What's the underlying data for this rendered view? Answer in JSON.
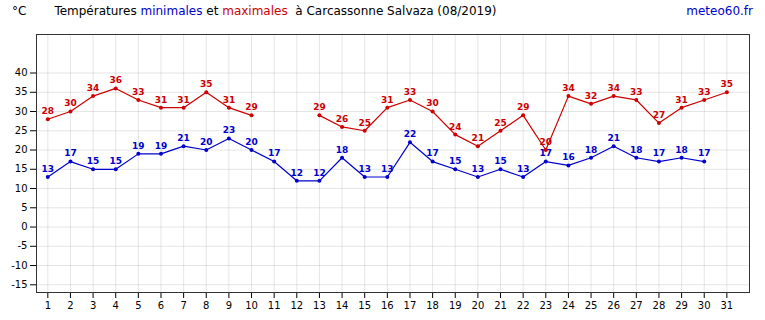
{
  "chart_data": {
    "type": "line",
    "title": "Températures minimales et maximales  à Carcassonne Salvaza (08/2019)",
    "ylabel": "°C",
    "annotations": [
      {
        "text": "meteo60.fr",
        "color": "#0000cc"
      }
    ],
    "x": [
      1,
      2,
      3,
      4,
      5,
      6,
      7,
      8,
      9,
      10,
      11,
      12,
      13,
      14,
      15,
      16,
      17,
      18,
      19,
      20,
      21,
      22,
      23,
      24,
      25,
      26,
      27,
      28,
      29,
      30,
      31
    ],
    "series": [
      {
        "name": "minimales",
        "color": "#0000cc",
        "marker": "o",
        "line_style": "solid",
        "values": [
          13,
          17,
          15,
          15,
          19,
          19,
          21,
          20,
          23,
          20,
          17,
          12,
          12,
          18,
          13,
          13,
          22,
          17,
          15,
          13,
          15,
          13,
          17,
          16,
          18,
          21,
          18,
          17,
          18,
          17,
          null
        ]
      },
      {
        "name": "maximales",
        "color": "#cc0000",
        "marker": "o",
        "line_style": "solid",
        "values": [
          28,
          30,
          34,
          36,
          33,
          31,
          31,
          35,
          31,
          29,
          null,
          null,
          29,
          26,
          25,
          31,
          33,
          30,
          24,
          21,
          25,
          29,
          20,
          34,
          32,
          34,
          33,
          27,
          31,
          33,
          35
        ]
      }
    ],
    "xlim": [
      0.5,
      32
    ],
    "xticks": [
      1,
      2,
      3,
      4,
      5,
      6,
      7,
      8,
      9,
      10,
      11,
      12,
      13,
      14,
      15,
      16,
      17,
      18,
      19,
      20,
      21,
      22,
      23,
      24,
      25,
      26,
      27,
      28,
      29,
      30,
      31
    ],
    "ylim": [
      -17,
      50
    ],
    "yticks": [
      -15,
      -10,
      -5,
      0,
      5,
      10,
      15,
      20,
      25,
      30,
      35,
      40
    ],
    "grid": true,
    "data_labels": true
  }
}
